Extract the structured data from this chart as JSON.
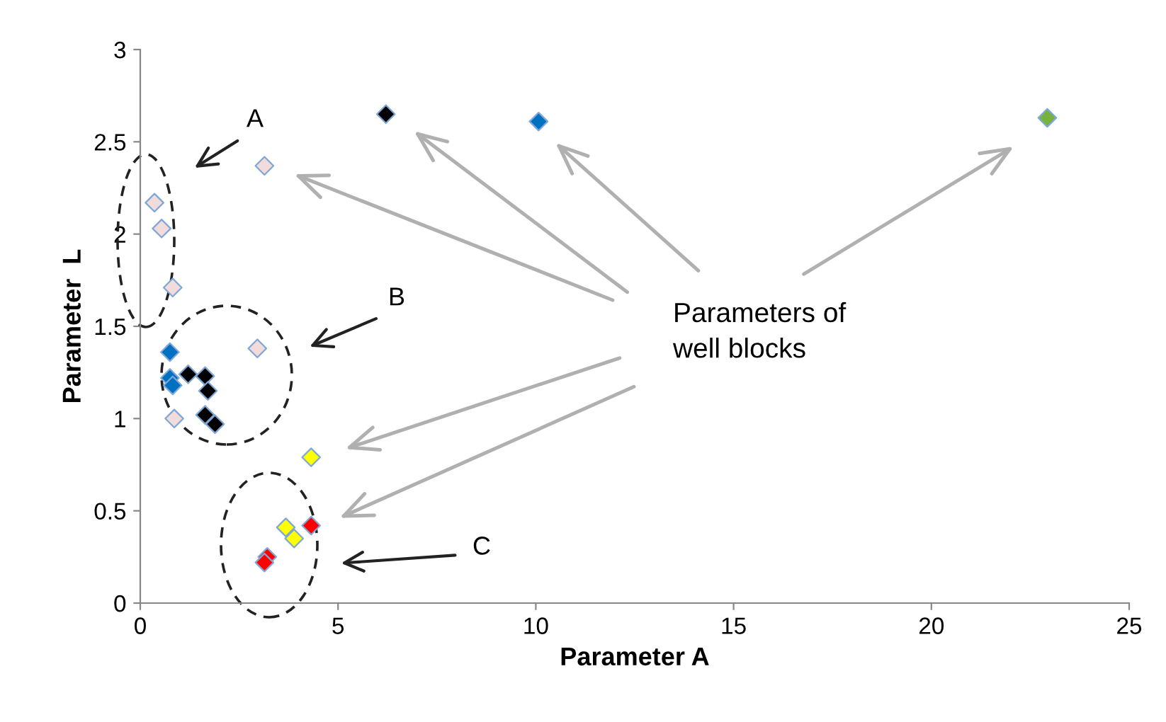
{
  "chart_data": {
    "type": "scatter",
    "xlabel": "Parameter A",
    "ylabel": "Parameter  L",
    "marker": "diamond",
    "grid": false,
    "legend": false,
    "xlim": [
      0,
      25
    ],
    "ylim": [
      0,
      3
    ],
    "xticks": [
      0,
      5,
      10,
      15,
      20,
      25
    ],
    "yticks": [
      0,
      0.5,
      1,
      1.5,
      2,
      2.5,
      3
    ],
    "annotations": [
      "A",
      "B",
      "C",
      "Parameters of\nwell blocks"
    ],
    "series": [
      {
        "color": "#f2dcdb",
        "x": [
          0.36,
          0.54,
          0.82,
          3.14,
          2.96,
          0.86
        ],
        "values": [
          2.17,
          2.03,
          1.71,
          2.37,
          1.38,
          1.0
        ]
      },
      {
        "color": "#0070c0",
        "x": [
          0.75,
          0.75,
          0.82,
          10.07
        ],
        "values": [
          1.36,
          1.22,
          1.18,
          2.61
        ]
      },
      {
        "color": "#000000",
        "x": [
          6.21,
          1.21,
          1.64,
          1.71,
          1.64,
          1.89
        ],
        "values": [
          2.65,
          1.24,
          1.23,
          1.15,
          1.02,
          0.97
        ]
      },
      {
        "color": "#ffff00",
        "x": [
          4.32,
          3.68,
          3.89
        ],
        "values": [
          0.79,
          0.41,
          0.35
        ]
      },
      {
        "color": "#ff0000",
        "x": [
          4.32,
          3.21,
          3.14
        ],
        "values": [
          0.42,
          0.25,
          0.22
        ]
      },
      {
        "color": "#77b23c",
        "x": [
          22.93
        ],
        "values": [
          2.63
        ]
      }
    ]
  }
}
